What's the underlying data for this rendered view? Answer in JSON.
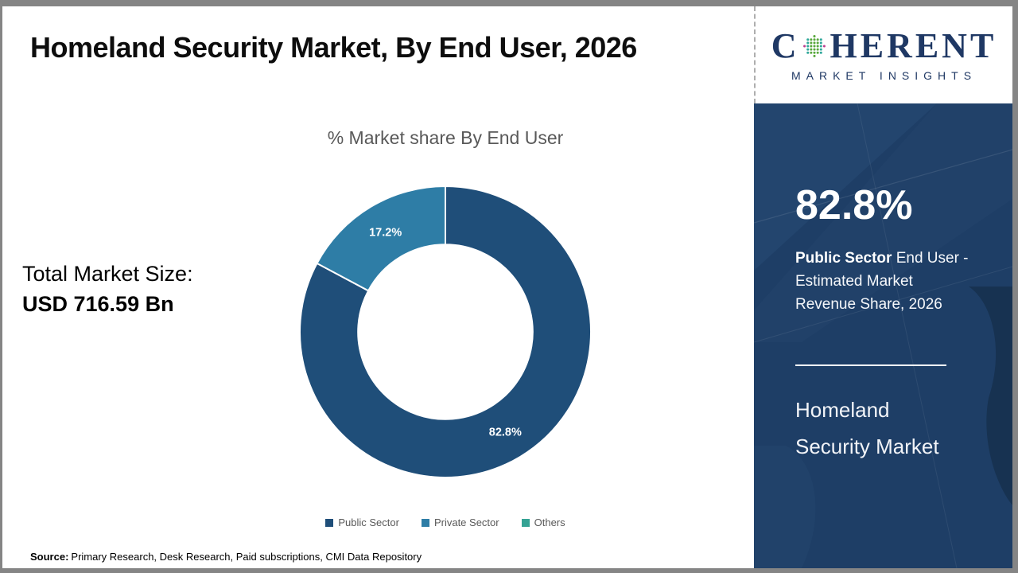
{
  "header": {
    "title": "Homeland Security Market, By End User, 2026"
  },
  "logo": {
    "prefix": "C",
    "suffix": "HERENT",
    "subtitle": "MARKET INSIGHTS",
    "brand_color": "#1F3864",
    "globe_icon": "dotted-globe"
  },
  "main": {
    "chart_title": "% Market share By End User",
    "total_label": "Total Market Size:",
    "total_value": "USD 716.59 Bn"
  },
  "chart_data": {
    "type": "pie",
    "subtype": "donut",
    "title": "% Market share By End User",
    "categories": [
      "Public Sector",
      "Private Sector",
      "Others"
    ],
    "values": [
      82.8,
      17.2,
      0
    ],
    "colors": [
      "#1F4E79",
      "#2E7DA6",
      "#35A394"
    ],
    "data_labels": [
      "82.8%",
      "17.2%",
      ""
    ],
    "hole_ratio": 0.6,
    "start_angle_deg": 0,
    "direction": "clockwise",
    "legend_position": "bottom",
    "label_color": "#ffffff"
  },
  "sidebar": {
    "stat_value": "82.8%",
    "desc_bold": "Public Sector",
    "desc_rest": " End User -",
    "desc_line2": "Estimated Market",
    "desc_line3": "Revenue Share, 2026",
    "brand_line1": "Homeland",
    "brand_line2": "Security Market",
    "bg_color": "#1E3E66"
  },
  "footer": {
    "source_label": "Source:",
    "source_text": "Primary Research, Desk Research, Paid subscriptions, CMI Data Repository"
  }
}
